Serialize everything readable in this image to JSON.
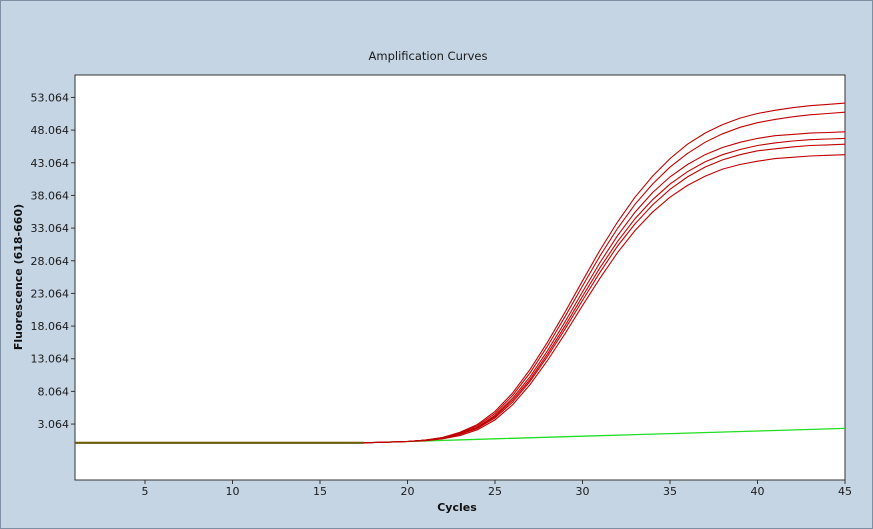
{
  "chart_data": {
    "type": "line",
    "title": "Amplification Curves",
    "xlabel": "Cycles",
    "ylabel": "Fluorescence (618-660)",
    "xlim": [
      1,
      45
    ],
    "ylim": [
      -5.5,
      56.5
    ],
    "xticks": [
      5,
      10,
      15,
      20,
      25,
      30,
      35,
      40,
      45
    ],
    "yticks": [
      3.064,
      8.064,
      13.064,
      18.064,
      23.064,
      28.064,
      33.064,
      38.064,
      43.064,
      48.064,
      53.064
    ],
    "ytick_labels": [
      "3.064",
      "8.064",
      "13.064",
      "18.064",
      "23.064",
      "28.064",
      "33.064",
      "38.064",
      "43.064",
      "48.064",
      "53.064"
    ],
    "grid": false,
    "legend": "none",
    "series_colors": {
      "positive": "#c00000",
      "negative": "#22dd22",
      "early_overlap": "#6b5a00"
    },
    "x": [
      1,
      5,
      10,
      15,
      17.5,
      20,
      21,
      22,
      23,
      24,
      25,
      26,
      27,
      28,
      29,
      30,
      31,
      32,
      33,
      34,
      35,
      36,
      37,
      38,
      39,
      40,
      41,
      42,
      43,
      44,
      45
    ],
    "series": [
      {
        "values": [
          0.2,
          0.2,
          0.2,
          0.2,
          0.2,
          0.4,
          0.6,
          1.0,
          1.8,
          3.0,
          5.0,
          7.8,
          11.4,
          15.6,
          20.2,
          25.0,
          29.7,
          34.0,
          37.8,
          41.0,
          43.7,
          45.9,
          47.6,
          48.9,
          49.9,
          50.6,
          51.1,
          51.5,
          51.8,
          52.0,
          52.2
        ]
      },
      {
        "values": [
          0.2,
          0.2,
          0.2,
          0.2,
          0.2,
          0.4,
          0.6,
          1.0,
          1.7,
          2.8,
          4.7,
          7.4,
          10.9,
          15.0,
          19.5,
          24.2,
          28.8,
          33.0,
          36.7,
          39.8,
          42.4,
          44.5,
          46.2,
          47.5,
          48.5,
          49.2,
          49.7,
          50.1,
          50.4,
          50.6,
          50.8
        ]
      },
      {
        "values": [
          0.2,
          0.2,
          0.2,
          0.2,
          0.2,
          0.4,
          0.6,
          0.9,
          1.6,
          2.6,
          4.4,
          7.0,
          10.3,
          14.3,
          18.7,
          23.3,
          27.8,
          31.9,
          35.5,
          38.5,
          40.9,
          42.8,
          44.3,
          45.4,
          46.2,
          46.8,
          47.2,
          47.4,
          47.6,
          47.7,
          47.8
        ]
      },
      {
        "values": [
          0.2,
          0.2,
          0.2,
          0.2,
          0.2,
          0.4,
          0.6,
          0.9,
          1.5,
          2.5,
          4.2,
          6.7,
          9.9,
          13.8,
          18.1,
          22.6,
          27.0,
          31.0,
          34.5,
          37.4,
          39.8,
          41.7,
          43.2,
          44.3,
          45.1,
          45.7,
          46.1,
          46.4,
          46.6,
          46.7,
          46.8
        ]
      },
      {
        "values": [
          0.2,
          0.2,
          0.2,
          0.2,
          0.2,
          0.4,
          0.6,
          0.9,
          1.5,
          2.4,
          4.0,
          6.4,
          9.6,
          13.4,
          17.6,
          22.0,
          26.3,
          30.3,
          33.7,
          36.6,
          39.0,
          40.9,
          42.4,
          43.5,
          44.3,
          44.9,
          45.2,
          45.5,
          45.7,
          45.8,
          45.9
        ]
      },
      {
        "values": [
          0.2,
          0.2,
          0.2,
          0.2,
          0.2,
          0.4,
          0.5,
          0.8,
          1.3,
          2.2,
          3.7,
          6.0,
          9.1,
          12.8,
          16.9,
          21.2,
          25.4,
          29.3,
          32.7,
          35.5,
          37.8,
          39.6,
          41.0,
          42.1,
          42.8,
          43.3,
          43.7,
          43.9,
          44.1,
          44.2,
          44.3
        ]
      }
    ],
    "negative_series": {
      "x": [
        1,
        10,
        17.5,
        20,
        25,
        30,
        35,
        40,
        45
      ],
      "values": [
        0.2,
        0.2,
        0.2,
        0.4,
        0.8,
        1.2,
        1.6,
        2.0,
        2.4
      ]
    }
  }
}
